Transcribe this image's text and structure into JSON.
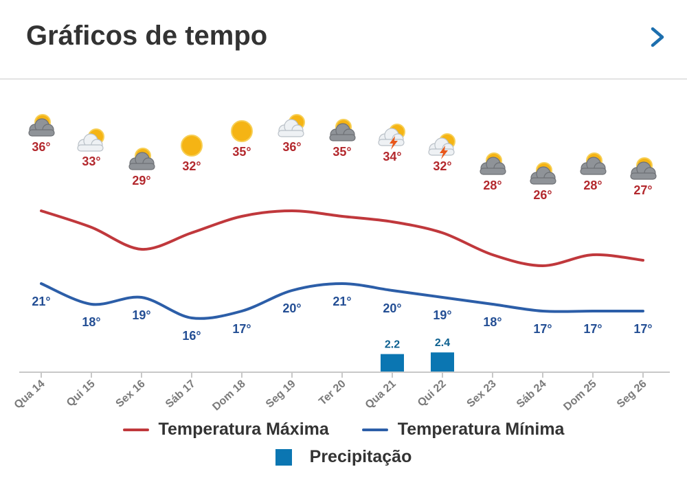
{
  "header": {
    "title": "Gráficos de tempo",
    "next_icon": "chevron-right-icon"
  },
  "colors": {
    "max_line": "#c0383c",
    "min_line": "#2c5ea8",
    "precip": "#0b76b2",
    "max_label": "#b3282d",
    "min_label": "#234e94",
    "precip_label": "#0b5f8f",
    "axis_label": "#7a7a7a",
    "chevron": "#1d6fae"
  },
  "legend": {
    "max_label": "Temperatura Máxima",
    "min_label": "Temperatura Mínima",
    "precip_label": "Precipitação"
  },
  "chart_data": {
    "type": "line",
    "categories": [
      "Qua 14",
      "Qui 15",
      "Sex 16",
      "Sáb 17",
      "Dom 18",
      "Seg 19",
      "Ter 20",
      "Qua 21",
      "Qui 22",
      "Sex 23",
      "Sáb 24",
      "Dom 25",
      "Seg 26"
    ],
    "series": [
      {
        "name": "Temperatura Máxima",
        "values": [
          36,
          33,
          29,
          32,
          35,
          36,
          35,
          34,
          32,
          28,
          26,
          28,
          27
        ]
      },
      {
        "name": "Temperatura Mínima",
        "values": [
          21,
          18,
          19,
          16,
          17,
          20,
          21,
          20,
          19,
          18,
          17,
          17,
          17
        ]
      },
      {
        "name": "Precipitação",
        "type": "bar",
        "values": [
          0,
          0,
          0,
          0,
          0,
          0,
          0,
          2.2,
          2.4,
          0,
          0,
          0,
          0
        ]
      }
    ],
    "max_labels": [
      "36°",
      "33°",
      "29°",
      "32°",
      "35°",
      "36°",
      "35°",
      "34°",
      "32°",
      "28°",
      "26°",
      "28°",
      "27°"
    ],
    "min_labels": [
      "21°",
      "18°",
      "19°",
      "16°",
      "17°",
      "20°",
      "21°",
      "20°",
      "19°",
      "18°",
      "17°",
      "17°",
      "17°"
    ],
    "precip_labels": [
      "",
      "",
      "",
      "",
      "",
      "",
      "",
      "2.2",
      "2.4",
      "",
      "",
      "",
      ""
    ],
    "icons": [
      "partly-cloudy-icon",
      "sun-cloud-icon",
      "partly-cloudy-icon",
      "sun-icon",
      "sun-icon",
      "sun-cloud-icon",
      "partly-cloudy-icon",
      "thunderstorm-icon",
      "thunderstorm-icon",
      "partly-cloudy-icon",
      "partly-cloudy-icon",
      "partly-cloudy-icon",
      "partly-cloudy-icon"
    ],
    "legend_position": "bottom",
    "grid": false
  }
}
